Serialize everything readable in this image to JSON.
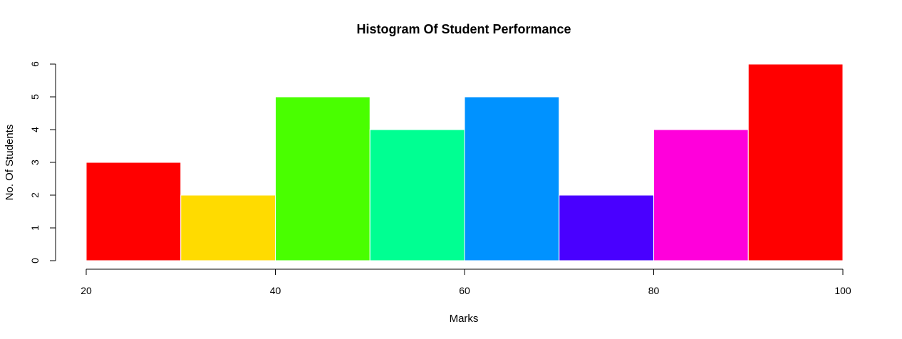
{
  "chart_data": {
    "type": "bar",
    "title": "Histogram Of Student Performance",
    "xlabel": "Marks",
    "ylabel": "No. Of Students",
    "bins": [
      {
        "from": 20,
        "to": 30,
        "count": 3,
        "color": "#FF0000"
      },
      {
        "from": 30,
        "to": 40,
        "count": 2,
        "color": "#FFDB00"
      },
      {
        "from": 40,
        "to": 50,
        "count": 5,
        "color": "#49FF00"
      },
      {
        "from": 50,
        "to": 60,
        "count": 4,
        "color": "#00FF92"
      },
      {
        "from": 60,
        "to": 70,
        "count": 5,
        "color": "#0092FF"
      },
      {
        "from": 70,
        "to": 80,
        "count": 2,
        "color": "#4900FF"
      },
      {
        "from": 80,
        "to": 90,
        "count": 4,
        "color": "#FF00DB"
      },
      {
        "from": 90,
        "to": 100,
        "count": 6,
        "color": "#FF0000"
      }
    ],
    "xlim": [
      20,
      100
    ],
    "ylim": [
      0,
      6
    ],
    "xticks": [
      20,
      40,
      60,
      80,
      100
    ],
    "yticks": [
      0,
      1,
      2,
      3,
      4,
      5,
      6
    ],
    "grid": false,
    "bar_border_color": "#FFFFFF"
  }
}
